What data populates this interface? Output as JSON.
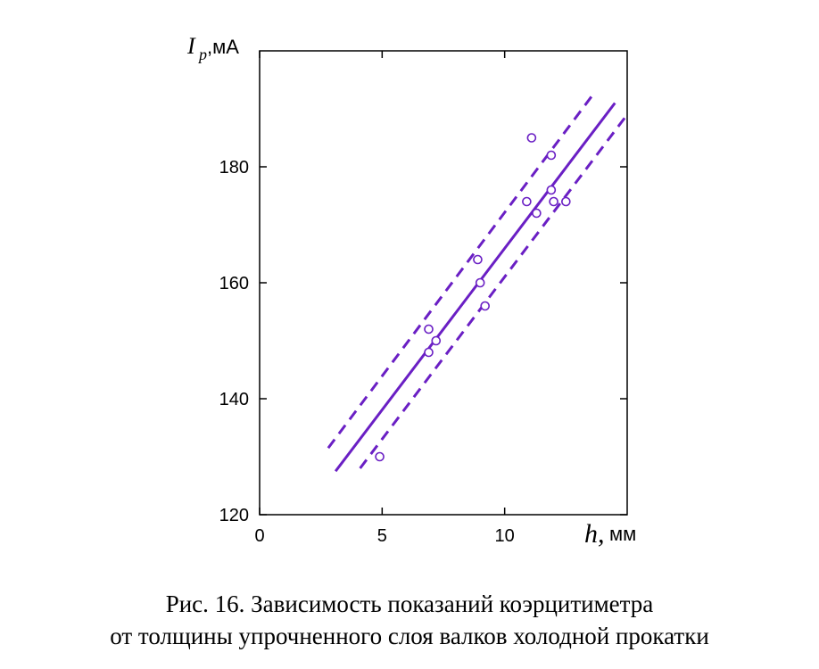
{
  "chart_data": {
    "type": "scatter",
    "ylabel": {
      "symbol": "I",
      "subscript": "p",
      "unit": ",мА"
    },
    "xlabel": {
      "symbol": "h,",
      "unit": " мм"
    },
    "xlim": [
      0,
      15
    ],
    "ylim": [
      120,
      200
    ],
    "x_ticks": [
      0,
      5,
      10
    ],
    "y_ticks": [
      120,
      140,
      160,
      180
    ],
    "points": [
      {
        "x": 4.9,
        "y": 130
      },
      {
        "x": 6.9,
        "y": 152
      },
      {
        "x": 6.9,
        "y": 148
      },
      {
        "x": 7.2,
        "y": 150
      },
      {
        "x": 8.9,
        "y": 164
      },
      {
        "x": 9.0,
        "y": 160
      },
      {
        "x": 9.2,
        "y": 156
      },
      {
        "x": 10.9,
        "y": 174
      },
      {
        "x": 11.1,
        "y": 185
      },
      {
        "x": 11.3,
        "y": 172
      },
      {
        "x": 11.9,
        "y": 182
      },
      {
        "x": 11.9,
        "y": 176
      },
      {
        "x": 12.0,
        "y": 174
      },
      {
        "x": 12.5,
        "y": 174
      }
    ],
    "fit_line": {
      "x": [
        3.1,
        14.5
      ],
      "y": [
        127.5,
        191
      ]
    },
    "upper_band": {
      "x": [
        2.8,
        13.7
      ],
      "y": [
        131.5,
        193
      ]
    },
    "lower_band": {
      "x": [
        4.1,
        15.0
      ],
      "y": [
        128,
        189
      ]
    },
    "colors": {
      "series": "#6a1fc4",
      "axes": "#000000"
    }
  },
  "caption": {
    "line1": "Рис. 16. Зависимость  показаний коэрцитиметра",
    "line2": "от толщины упрочненного слоя валков холодной прокатки"
  }
}
